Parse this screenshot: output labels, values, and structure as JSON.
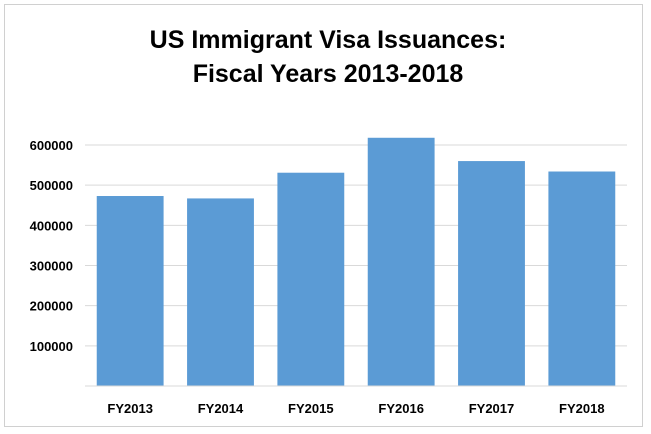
{
  "chart_data": {
    "type": "bar",
    "title_lines": [
      "US Immigrant Visa Issuances:",
      "Fiscal Years 2013-2018"
    ],
    "categories": [
      "FY2013",
      "FY2014",
      "FY2015",
      "FY2016",
      "FY2017",
      "FY2018"
    ],
    "values": [
      473000,
      467000,
      531000,
      618000,
      560000,
      534000
    ],
    "y_ticks": [
      "100000",
      "200000",
      "300000",
      "400000",
      "500000",
      "600000"
    ],
    "xlabel": "",
    "ylabel": "",
    "ylim": [
      0,
      600000
    ],
    "grid": true,
    "legend": "none",
    "bar_color": "#5b9bd5",
    "grid_color": "#d9d9d9"
  }
}
